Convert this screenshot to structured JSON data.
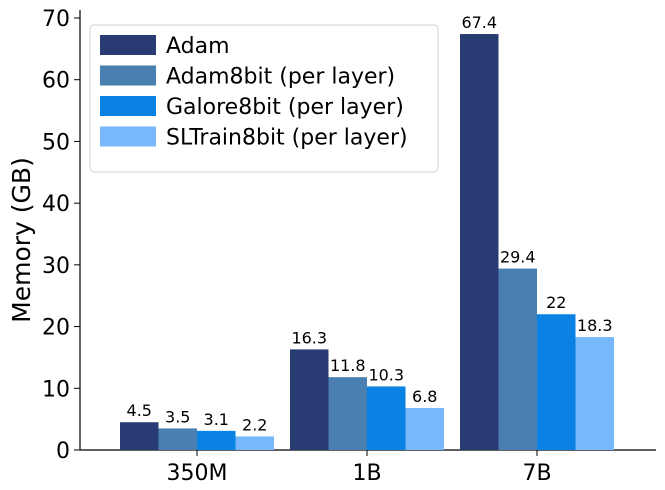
{
  "chart_data": {
    "type": "bar",
    "title": "",
    "xlabel": "",
    "ylabel": "Memory (GB)",
    "ylim": [
      0,
      70
    ],
    "yticks": [
      0,
      10,
      20,
      30,
      40,
      50,
      60,
      70
    ],
    "categories": [
      "350M",
      "1B",
      "7B"
    ],
    "legend_position": "top-left",
    "grid": false,
    "series": [
      {
        "name": "Adam",
        "color": "#283b73",
        "values": [
          4.5,
          16.3,
          67.4
        ],
        "labels": [
          "4.5",
          "16.3",
          "67.4"
        ]
      },
      {
        "name": "Adam8bit (per layer)",
        "color": "#4a7fb1",
        "values": [
          3.5,
          11.8,
          29.4
        ],
        "labels": [
          "3.5",
          "11.8",
          "29.4"
        ]
      },
      {
        "name": "Galore8bit (per layer)",
        "color": "#0a82e3",
        "values": [
          3.1,
          10.3,
          22
        ],
        "labels": [
          "3.1",
          "10.3",
          "22"
        ]
      },
      {
        "name": "SLTrain8bit (per layer)",
        "color": "#76b8fb",
        "values": [
          2.2,
          6.8,
          18.3
        ],
        "labels": [
          "2.2",
          "6.8",
          "18.3"
        ]
      }
    ]
  }
}
